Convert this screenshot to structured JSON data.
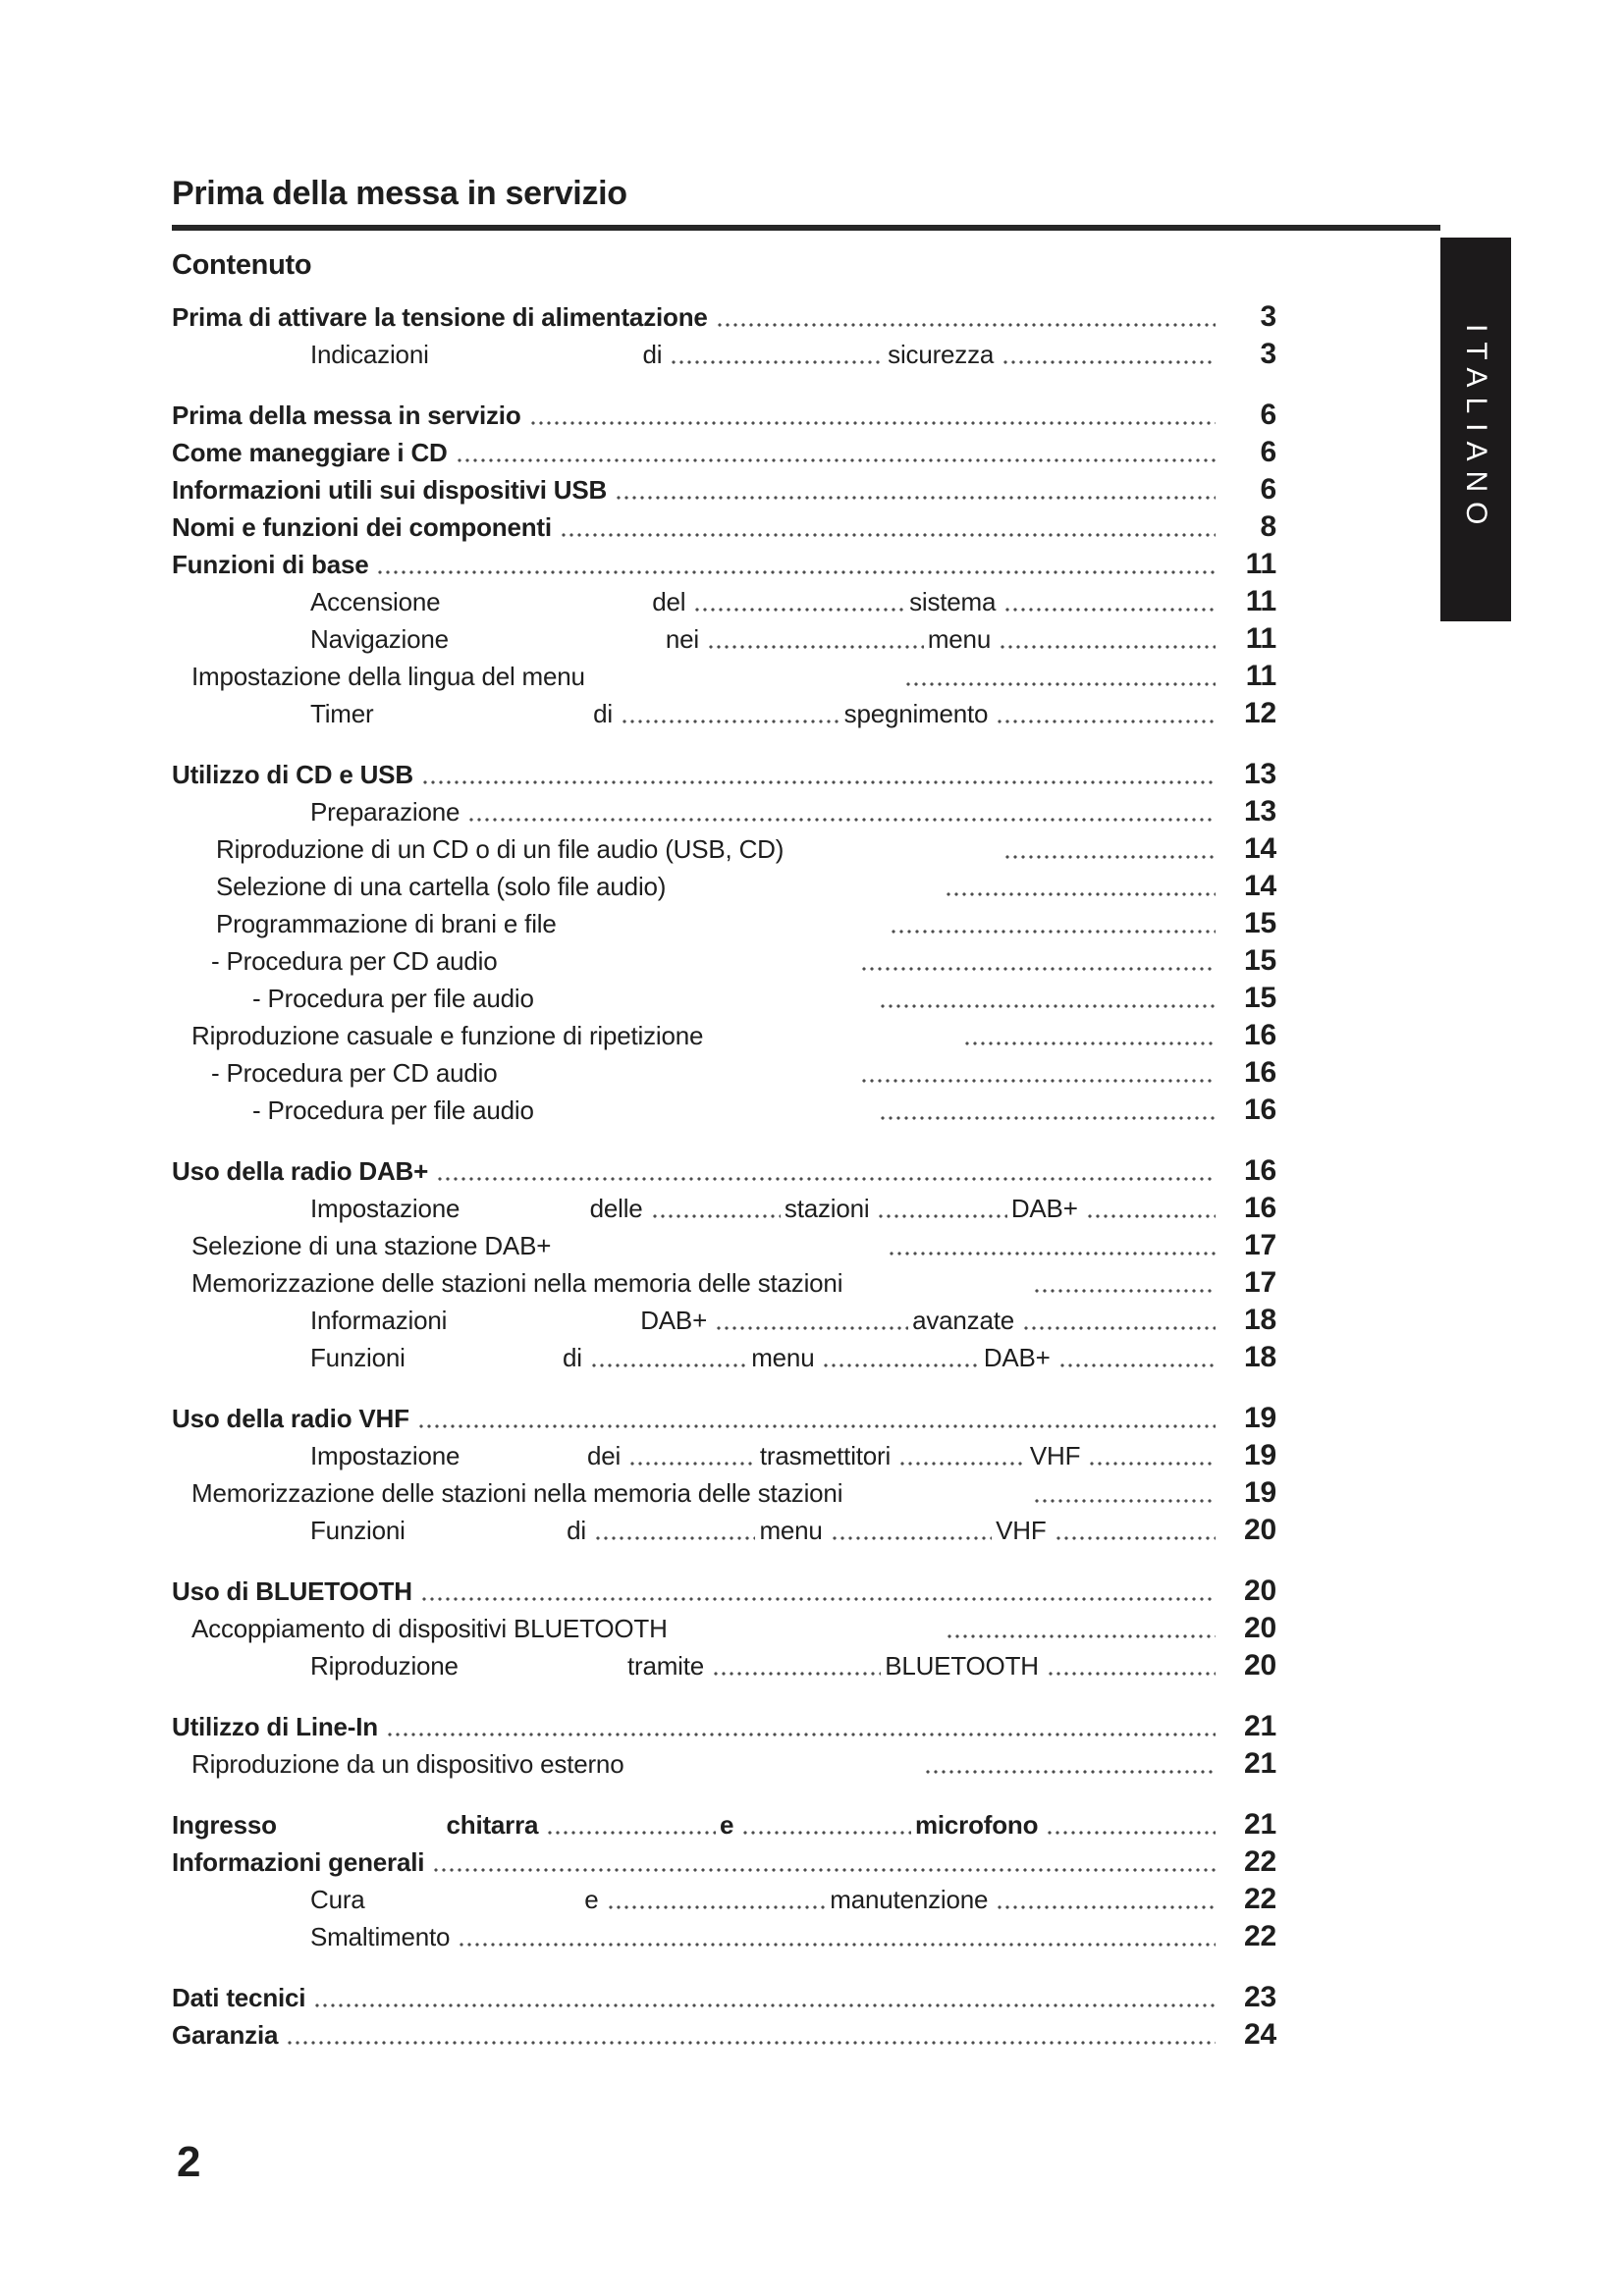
{
  "page": {
    "title": "Prima della messa in servizio",
    "contents_heading": "Contenuto",
    "side_tab": "ITALIANO",
    "page_number": "2"
  },
  "colors": {
    "text": "#1e1e1e",
    "rule": "#272727",
    "leader_dots": "#4d4d4d",
    "tab_bg": "#1c1a1b",
    "tab_text": "#ffffff"
  },
  "toc": {
    "rows": [
      {
        "label": "Prima di attivare la tensione di alimentazione",
        "page": "3",
        "bold": true,
        "indent": 0,
        "spread": false,
        "section": false
      },
      {
        "label": "Indicazioni di sicurezza",
        "page": "3",
        "bold": false,
        "indent": 5,
        "spread": true,
        "section": false
      },
      {
        "label": "Prima della messa in servizio",
        "page": "6",
        "bold": true,
        "indent": 0,
        "spread": false,
        "section": true
      },
      {
        "label": "Come maneggiare i CD",
        "page": "6",
        "bold": true,
        "indent": 0,
        "spread": false,
        "section": false
      },
      {
        "label": "Informazioni utili sui dispositivi USB",
        "page": "6",
        "bold": true,
        "indent": 0,
        "spread": false,
        "section": false
      },
      {
        "label": "Nomi e funzioni dei componenti",
        "page": "8",
        "bold": true,
        "indent": 0,
        "spread": false,
        "section": false
      },
      {
        "label": "Funzioni di base",
        "page": "11",
        "bold": true,
        "indent": 0,
        "spread": false,
        "section": false
      },
      {
        "label": "Accensione del sistema",
        "page": "11",
        "bold": false,
        "indent": 5,
        "spread": true,
        "section": false
      },
      {
        "label": "Navigazione nei menu",
        "page": "11",
        "bold": false,
        "indent": 5,
        "spread": true,
        "section": false
      },
      {
        "label": "Impostazione della lingua del menu",
        "page": "11",
        "bold": false,
        "indent": 1,
        "spread": false,
        "section": false
      },
      {
        "label": "Timer di spegnimento",
        "page": "12",
        "bold": false,
        "indent": 5,
        "spread": true,
        "section": false
      },
      {
        "label": "Utilizzo di CD e USB",
        "page": "13",
        "bold": true,
        "indent": 0,
        "spread": false,
        "section": true
      },
      {
        "label": "Preparazione",
        "page": "13",
        "bold": false,
        "indent": 5,
        "spread": false,
        "section": false
      },
      {
        "label": "Riproduzione di un CD o di un file audio (USB, CD)",
        "page": "14",
        "bold": false,
        "indent": 2,
        "spread": false,
        "section": false
      },
      {
        "label": "Selezione di una cartella (solo file audio)",
        "page": "14",
        "bold": false,
        "indent": 2,
        "spread": false,
        "section": false
      },
      {
        "label": "Programmazione di brani e file",
        "page": "15",
        "bold": false,
        "indent": 2,
        "spread": false,
        "section": false
      },
      {
        "label": "- Procedura per CD audio",
        "page": "15",
        "bold": false,
        "indent": 3,
        "spread": false,
        "section": false
      },
      {
        "label": "- Procedura per file audio",
        "page": "15",
        "bold": false,
        "indent": 4,
        "spread": false,
        "section": false
      },
      {
        "label": "Riproduzione casuale e funzione di ripetizione",
        "page": "16",
        "bold": false,
        "indent": 1,
        "spread": false,
        "section": false
      },
      {
        "label": "- Procedura per CD audio",
        "page": "16",
        "bold": false,
        "indent": 3,
        "spread": false,
        "section": false
      },
      {
        "label": "- Procedura per file audio",
        "page": "16",
        "bold": false,
        "indent": 4,
        "spread": false,
        "section": false
      },
      {
        "label": "Uso della radio DAB+",
        "page": "16",
        "bold": true,
        "indent": 0,
        "spread": false,
        "section": true
      },
      {
        "label": "Impostazione delle stazioni DAB+",
        "page": "16",
        "bold": false,
        "indent": 5,
        "spread": true,
        "section": false
      },
      {
        "label": "Selezione di una stazione DAB+",
        "page": "17",
        "bold": false,
        "indent": 1,
        "spread": false,
        "section": false
      },
      {
        "label": "Memorizzazione delle stazioni nella memoria delle stazioni",
        "page": "17",
        "bold": false,
        "indent": 1,
        "spread": false,
        "section": false
      },
      {
        "label": "Informazioni DAB+ avanzate",
        "page": "18",
        "bold": false,
        "indent": 5,
        "spread": true,
        "section": false
      },
      {
        "label": "Funzioni di menu DAB+",
        "page": "18",
        "bold": false,
        "indent": 5,
        "spread": true,
        "section": false
      },
      {
        "label": "Uso della radio VHF",
        "page": "19",
        "bold": true,
        "indent": 0,
        "spread": false,
        "section": true
      },
      {
        "label": "Impostazione dei trasmettitori VHF",
        "page": "19",
        "bold": false,
        "indent": 5,
        "spread": true,
        "section": false
      },
      {
        "label": "Memorizzazione delle stazioni nella memoria delle stazioni",
        "page": "19",
        "bold": false,
        "indent": 1,
        "spread": false,
        "section": false
      },
      {
        "label": "Funzioni di menu VHF",
        "page": "20",
        "bold": false,
        "indent": 5,
        "spread": true,
        "section": false
      },
      {
        "label": "Uso di BLUETOOTH",
        "page": "20",
        "bold": true,
        "indent": 0,
        "spread": false,
        "section": true
      },
      {
        "label": "Accoppiamento di dispositivi BLUETOOTH",
        "page": "20",
        "bold": false,
        "indent": 1,
        "spread": false,
        "section": false
      },
      {
        "label": "Riproduzione tramite BLUETOOTH",
        "page": "20",
        "bold": false,
        "indent": 5,
        "spread": true,
        "section": false
      },
      {
        "label": "Utilizzo di Line-In",
        "page": "21",
        "bold": true,
        "indent": 0,
        "spread": false,
        "section": true
      },
      {
        "label": "Riproduzione da un dispositivo esterno",
        "page": "21",
        "bold": false,
        "indent": 1,
        "spread": false,
        "section": false
      },
      {
        "label": "Ingresso chitarra e microfono",
        "page": "21",
        "bold": true,
        "indent": 0,
        "spread": true,
        "section": true
      },
      {
        "label": "Informazioni generali",
        "page": "22",
        "bold": true,
        "indent": 0,
        "spread": false,
        "section": false
      },
      {
        "label": "Cura e manutenzione",
        "page": "22",
        "bold": false,
        "indent": 5,
        "spread": true,
        "section": false
      },
      {
        "label": "Smaltimento",
        "page": "22",
        "bold": false,
        "indent": 5,
        "spread": false,
        "section": false
      },
      {
        "label": "Dati tecnici",
        "page": "23",
        "bold": true,
        "indent": 0,
        "spread": false,
        "section": true
      },
      {
        "label": "Garanzia",
        "page": "24",
        "bold": true,
        "indent": 0,
        "spread": false,
        "section": false
      }
    ]
  }
}
